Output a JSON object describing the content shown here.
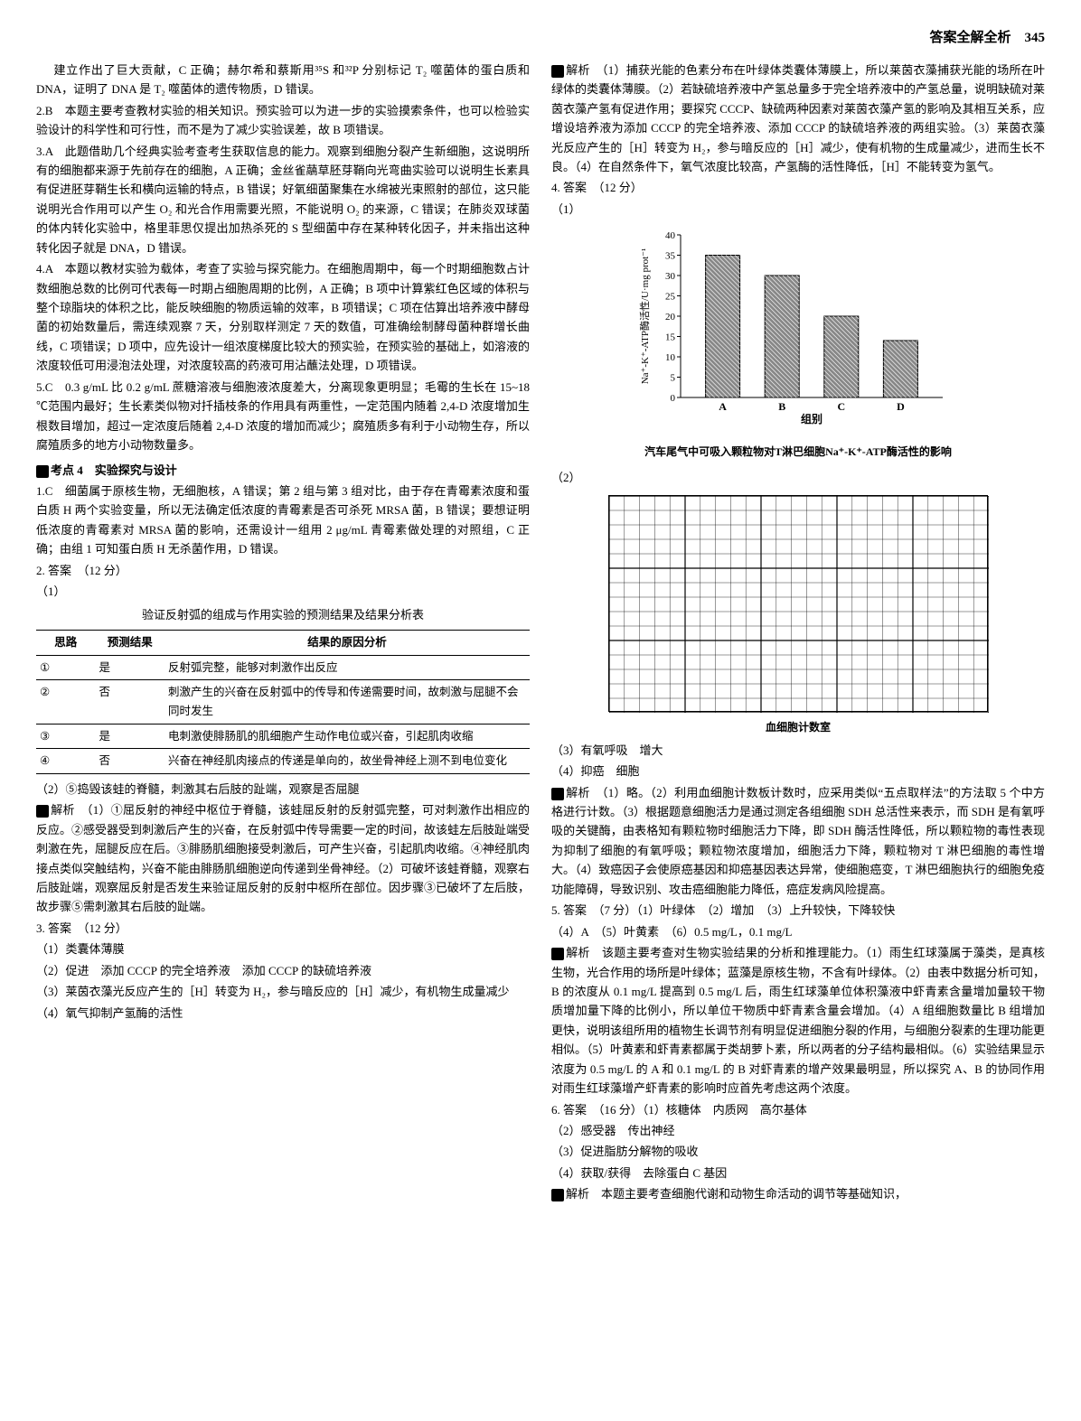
{
  "header": "答案全解全析　345",
  "left": {
    "p1": "建立作出了巨大贡献，C 正确；赫尔希和蔡斯用³⁵S 和³²P 分别标记 T₂ 噬菌体的蛋白质和 DNA，证明了 DNA 是 T₂ 噬菌体的遗传物质，D 错误。",
    "q2B": "2.B　本题主要考查教材实验的相关知识。预实验可以为进一步的实验摸索条件，也可以检验实验设计的科学性和可行性，而不是为了减少实验误差，故 B 项错误。",
    "q3A": "3.A　此题借助几个经典实验考查考生获取信息的能力。观察到细胞分裂产生新细胞，这说明所有的细胞都来源于先前存在的细胞，A 正确；金丝雀虉草胚芽鞘向光弯曲实验可以说明生长素具有促进胚芽鞘生长和横向运输的特点，B 错误；好氧细菌聚集在水绵被光束照射的部位，这只能说明光合作用可以产生 O₂ 和光合作用需要光照，不能说明 O₂ 的来源，C 错误；在肺炎双球菌的体内转化实验中，格里菲思仅提出加热杀死的 S 型细菌中存在某种转化因子，并未指出这种转化因子就是 DNA，D 错误。",
    "q4A": "4.A　本题以教材实验为载体，考查了实验与探究能力。在细胞周期中，每一个时期细胞数占计数细胞总数的比例可代表每一时期占细胞周期的比例，A 正确；B 项中计算紫红色区域的体积与整个琼脂块的体积之比，能反映细胞的物质运输的效率，B 项错误；C 项在估算出培养液中酵母菌的初始数量后，需连续观察 7 天，分别取样测定 7 天的数值，可准确绘制酵母菌种群增长曲线，C 项错误；D 项中，应先设计一组浓度梯度比较大的预实验，在预实验的基础上，如溶液的浓度较低可用浸泡法处理，对浓度较高的药液可用沾蘸法处理，D 项错误。",
    "q5C": "5.C　0.3 g/mL 比 0.2 g/mL 蔗糖溶液与细胞液浓度差大，分离现象更明显；毛霉的生长在 15~18 ℃范围内最好；生长素类似物对扦插枝条的作用具有两重性，一定范围内随着 2,4-D 浓度增加生根数目增加，超过一定浓度后随着 2,4-D 浓度的增加而减少；腐殖质多有利于小动物生存，所以腐殖质多的地方小动物数量多。",
    "topic4": "考点 4　实验探究与设计",
    "q1C": "1.C　细菌属于原核生物，无细胞核，A 错误；第 2 组与第 3 组对比，由于存在青霉素浓度和蛋白质 H 两个实验变量，所以无法确定低浓度的青霉素是否可杀死 MRSA 菌，B 错误；要想证明低浓度的青霉素对 MRSA 菌的影响，还需设计一组用 2 μg/mL 青霉素做处理的对照组，C 正确；由组 1 可知蛋白质 H 无杀菌作用，D 错误。",
    "q2ans": "2. 答案　（12 分）",
    "q2_1": "（1）",
    "tbl_head": "验证反射弧的组成与作用实验的预测结果及结果分析表",
    "tbl": {
      "cols": [
        "思路",
        "预测结果",
        "结果的原因分析"
      ],
      "rows": [
        [
          "①",
          "是",
          "反射弧完整，能够对刺激作出反应"
        ],
        [
          "②",
          "否",
          "刺激产生的兴奋在反射弧中的传导和传递需要时间，故刺激与屈腿不会同时发生"
        ],
        [
          "③",
          "是",
          "电刺激使腓肠肌的肌细胞产生动作电位或兴奋，引起肌肉收缩"
        ],
        [
          "④",
          "否",
          "兴奋在神经肌肉接点的传递是单向的，故坐骨神经上测不到电位变化"
        ]
      ]
    },
    "q2_2": "（2）⑤捣毁该蛙的脊髓，刺激其右后肢的趾端，观察是否屈腿",
    "q2_jx": "解析　（1）①屈反射的神经中枢位于脊髓，该蛙屈反射的反射弧完整，可对刺激作出相应的反应。②感受器受到刺激后产生的兴奋，在反射弧中传导需要一定的时间，故该蛙左后肢趾端受刺激在先，屈腿反应在后。③腓肠肌细胞接受刺激后，可产生兴奋，引起肌肉收缩。④神经肌肉接点类似突触结构，兴奋不能由腓肠肌细胞逆向传递到坐骨神经。（2）可破坏该蛙脊髓，观察右后肢趾端，观察屈反射是否发生来验证屈反射的反射中枢所在部位。因步骤③已破坏了左后肢，故步骤⑤需刺激其右后肢的趾端。",
    "q3ans": "3. 答案　（12 分）",
    "q3_1": "（1）类囊体薄膜",
    "q3_2": "（2）促进　添加 CCCP 的完全培养液　添加 CCCP 的缺硫培养液",
    "q3_3": "（3）莱茵衣藻光反应产生的［H］转变为 H₂，参与暗反应的［H］减少，有机物生成量减少",
    "q3_4": "（4）氧气抑制产氢酶的活性"
  },
  "right": {
    "q3jx": "解析　（1）捕获光能的色素分布在叶绿体类囊体薄膜上，所以莱茵衣藻捕获光能的场所在叶绿体的类囊体薄膜。（2）若缺硫培养液中产氢总量多于完全培养液中的产氢总量，说明缺硫对莱茵衣藻产氢有促进作用；要探究 CCCP、缺硫两种因素对莱茵衣藻产氢的影响及其相互关系，应增设培养液为添加 CCCP 的完全培养液、添加 CCCP 的缺硫培养液的两组实验。（3）莱茵衣藻光反应产生的［H］转变为 H₂，参与暗反应的［H］减少，使有机物的生成量减少，进而生长不良。（4）在自然条件下，氧气浓度比较高，产氢酶的活性降低，［H］不能转变为氢气。",
    "q4ans": "4. 答案　（12 分）",
    "q4_1": "（1）",
    "chart": {
      "ylabel": "Na⁺-K⁺-ATP酶活性/U·mg prot⁻¹",
      "xlabel": "组别",
      "yticks": [
        0,
        5,
        10,
        15,
        20,
        25,
        30,
        35,
        40
      ],
      "cats": [
        "A",
        "B",
        "C",
        "D"
      ],
      "vals": [
        35,
        30,
        20,
        14
      ],
      "bar_fill": "#888",
      "bg": "#fff",
      "cap": "汽车尾气中可吸入颗粒物对T淋巴细胞Na⁺-K⁺-ATP酶活性的影响"
    },
    "q4_2": "（2）",
    "gridcap": "血细胞计数室",
    "q4_3": "（3）有氧呼吸　增大",
    "q4_4": "（4）抑癌　细胞",
    "q4jx": "解析　（1）略。（2）利用血细胞计数板计数时，应采用类似“五点取样法”的方法取 5 个中方格进行计数。（3）根据题意细胞活力是通过测定各组细胞 SDH 总活性来表示，而 SDH 是有氧呼吸的关键酶，由表格知有颗粒物时细胞活力下降，即 SDH 酶活性降低，所以颗粒物的毒性表现为抑制了细胞的有氧呼吸；颗粒物浓度增加，细胞活力下降，颗粒物对 T 淋巴细胞的毒性增大。（4）致癌因子会使原癌基因和抑癌基因表达异常，使细胞癌变，T 淋巴细胞执行的细胞免疫功能障碍，导致识别、攻击癌细胞能力降低，癌症发病风险提高。",
    "q5ans": "5. 答案　（7 分）（1）叶绿体　（2）增加　（3）上升较快，下降较快",
    "q5_4": "（4）A　（5）叶黄素　（6）0.5 mg/L，0.1 mg/L",
    "q5jx": "解析　该题主要考查对生物实验结果的分析和推理能力。（1）雨生红球藻属于藻类，是真核生物，光合作用的场所是叶绿体；蓝藻是原核生物，不含有叶绿体。（2）由表中数据分析可知，B 的浓度从 0.1 mg/L 提高到 0.5 mg/L 后，雨生红球藻单位体积藻液中虾青素含量增加量较干物质增加量下降的比例小，所以单位干物质中虾青素含量会增加。（4）A 组细胞数量比 B 组增加更快，说明该组所用的植物生长调节剂有明显促进细胞分裂的作用，与细胞分裂素的生理功能更相似。（5）叶黄素和虾青素都属于类胡萝卜素，所以两者的分子结构最相似。（6）实验结果显示浓度为 0.5 mg/L 的 A 和 0.1 mg/L 的 B 对虾青素的增产效果最明显，所以探究 A、B 的协同作用对雨生红球藻增产虾青素的影响时应首先考虑这两个浓度。",
    "q6ans": "6. 答案　（16 分）（1）核糖体　内质网　高尔基体",
    "q6_2": "（2）感受器　传出神经",
    "q6_3": "（3）促进脂肪分解物的吸收",
    "q6_4": "（4）获取/获得　去除蛋白 C 基因",
    "q6jx": "解析　本题主要考查细胞代谢和动物生命活动的调节等基础知识，"
  }
}
